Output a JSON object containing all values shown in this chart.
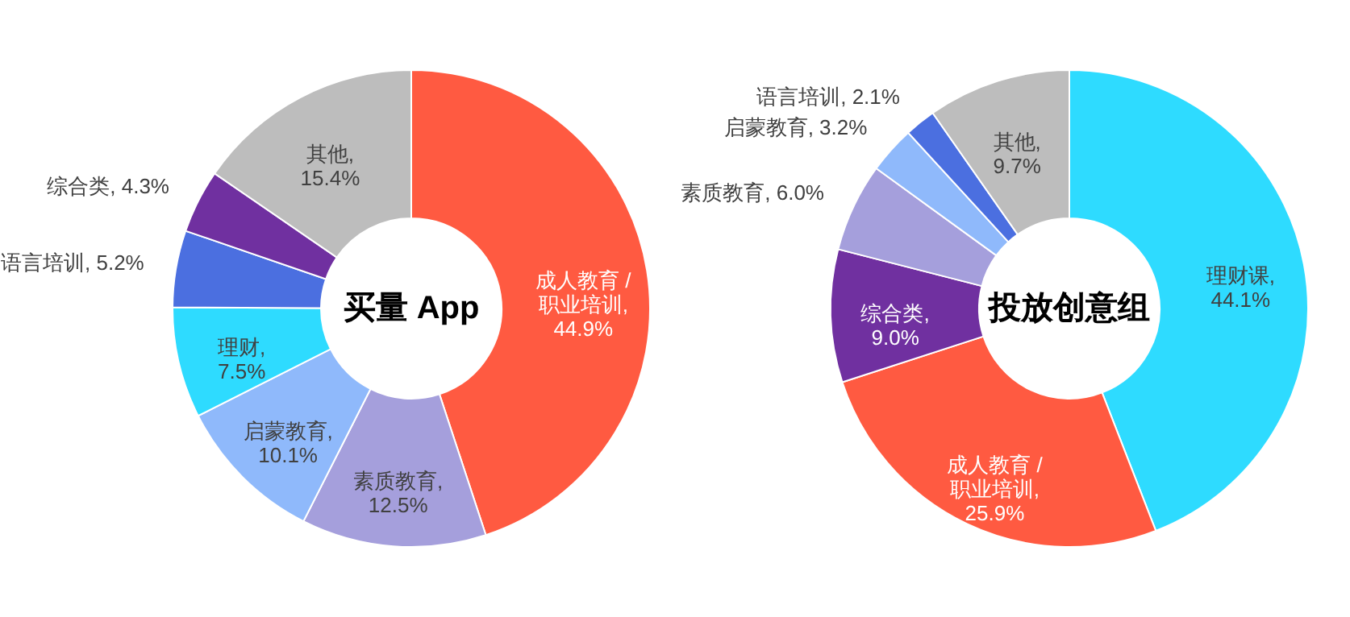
{
  "chart_data": [
    {
      "type": "donut",
      "title": "买量 App",
      "categories": [
        "成人教育 / 职业培训",
        "素质教育",
        "启蒙教育",
        "理财",
        "语言培训",
        "综合类",
        "其他"
      ],
      "values": [
        44.9,
        12.5,
        10.1,
        7.5,
        5.2,
        4.3,
        15.4
      ],
      "value_labels": [
        ", 44.9%",
        ", 12.5%",
        ", 10.1%",
        ", 7.5%",
        ", 5.2%",
        ", 4.3%",
        ", 15.4%"
      ],
      "colors": [
        "#ff5a41",
        "#a59fdc",
        "#8fb9fb",
        "#2edbff",
        "#4b6fe0",
        "#7030a0",
        "#bdbdbd"
      ]
    },
    {
      "type": "donut",
      "title": "投放创意组",
      "categories": [
        "理财课",
        "成人教育 / 职业培训",
        "综合类",
        "素质教育",
        "启蒙教育",
        "语言培训",
        "其他"
      ],
      "values": [
        44.1,
        25.9,
        9.0,
        6.0,
        3.2,
        2.1,
        9.7
      ],
      "value_labels": [
        ", 44.1%",
        ", 25.9%",
        ", 9.0%",
        ", 6.0%",
        ", 3.2%",
        ", 2.1%",
        ", 9.7%"
      ],
      "colors": [
        "#2edbff",
        "#ff5a41",
        "#7030a0",
        "#a59fdc",
        "#8fb9fb",
        "#4b6fe0",
        "#bdbdbd"
      ]
    }
  ]
}
